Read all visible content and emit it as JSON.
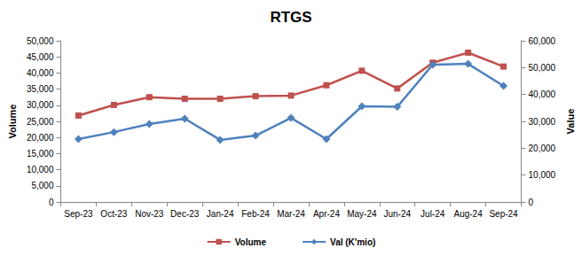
{
  "chart_data": {
    "type": "line",
    "title": "RTGS",
    "y_label": "Volume",
    "y2_label": "Value",
    "categories": [
      "Sep-23",
      "Oct-23",
      "Nov-23",
      "Dec-23",
      "Jan-24",
      "Feb-24",
      "Mar-24",
      "Apr-24",
      "May-24",
      "Jun-24",
      "Jul-24",
      "Aug-24",
      "Sep-24"
    ],
    "series": [
      {
        "name": "Volume",
        "color": "#c0504d",
        "marker": "square",
        "line_style": "solid",
        "values": [
          26800,
          30100,
          32500,
          32000,
          32000,
          32800,
          33000,
          36200,
          40700,
          35200,
          43200,
          46300,
          42000
        ]
      },
      {
        "name": "Val (K'mio)",
        "color": "#4f81bd",
        "marker": "diamond",
        "line_style": "solid",
        "axis": "y2",
        "values": [
          23400,
          26000,
          29000,
          31000,
          23100,
          24700,
          31300,
          23400,
          35600,
          35400,
          51100,
          51400,
          43200
        ]
      }
    ],
    "ylim": [
      0,
      50000
    ],
    "yticks": [
      0,
      {
        "value": 5000,
        "label": "5,000"
      },
      {
        "value": 10000,
        "label": "10,000"
      },
      {
        "value": 15000,
        "label": "15,000"
      },
      {
        "value": 20000,
        "label": "20,000"
      },
      {
        "value": 25000,
        "label": "25,000"
      },
      {
        "value": 30000,
        "label": "30,000"
      },
      {
        "value": 35000,
        "label": "35,000"
      },
      {
        "value": 40000,
        "label": "40,000"
      },
      {
        "value": 45000,
        "label": "45,000"
      },
      {
        "value": 50000,
        "label": "50,000"
      }
    ],
    "y2lim": [
      0,
      60000
    ],
    "y2ticks": [
      0,
      {
        "value": 10000,
        "label": "10,000"
      },
      {
        "value": 20000,
        "label": "20,000"
      },
      {
        "value": 30000,
        "label": "30,000"
      },
      {
        "value": 40000,
        "label": "40,000"
      },
      {
        "value": 50000,
        "label": "50,000"
      },
      {
        "value": 60000,
        "label": "60,000"
      }
    ],
    "grid": false,
    "legend": "bottom"
  }
}
